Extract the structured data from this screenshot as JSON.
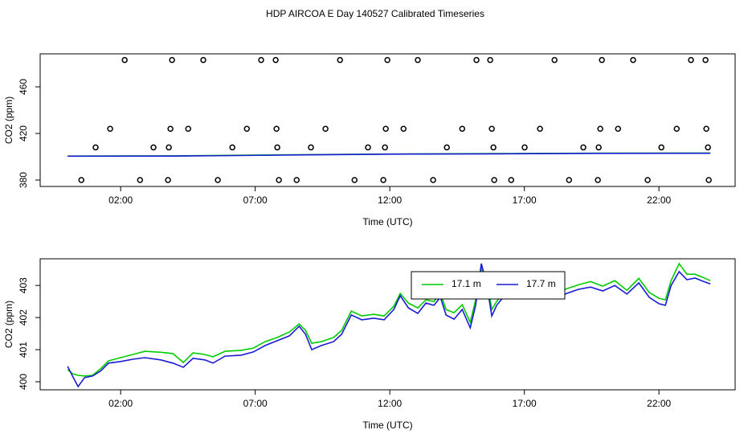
{
  "chart_data": [
    {
      "type": "scatter",
      "title": "HDP AIRCOA E  Day 140527  Calibrated Timeseries",
      "xlabel": "Time (UTC)",
      "ylabel": "CO2 (ppm)",
      "xlim": [
        -0.99,
        24.83
      ],
      "ylim": [
        374.5,
        488.3
      ],
      "xticks": [
        {
          "value": 2,
          "label": "02:00"
        },
        {
          "value": 7,
          "label": "07:00"
        },
        {
          "value": 12,
          "label": "12:00"
        },
        {
          "value": 17,
          "label": "17:00"
        },
        {
          "value": 22,
          "label": "22:00"
        }
      ],
      "yticks": [
        380,
        420,
        460
      ],
      "color": "#000000",
      "x": [
        2.15,
        3.91,
        5.07,
        7.22,
        7.76,
        10.15,
        11.91,
        13.04,
        15.22,
        15.73,
        18.12,
        19.88,
        21.04,
        23.19,
        23.73,
        1.61,
        3.85,
        4.51,
        6.69,
        7.79,
        9.61,
        11.85,
        12.51,
        14.69,
        15.79,
        17.58,
        19.82,
        20.48,
        22.66,
        23.76,
        1.07,
        3.22,
        3.79,
        6.15,
        7.82,
        9.07,
        11.19,
        11.82,
        14.12,
        15.85,
        17.01,
        19.19,
        19.76,
        22.09,
        23.82,
        0.54,
        2.72,
        3.76,
        5.61,
        7.88,
        8.54,
        10.69,
        11.76,
        13.61,
        15.88,
        16.51,
        18.66,
        19.73,
        21.58,
        23.85
      ],
      "values": [
        483,
        483,
        483,
        483,
        483,
        483,
        483,
        483,
        483,
        483,
        483,
        483,
        483,
        483,
        483,
        424,
        424,
        424,
        424,
        424,
        424,
        424,
        424,
        424,
        424,
        424,
        424,
        424,
        424,
        424,
        408,
        408,
        408,
        408,
        408,
        408,
        408,
        408,
        408,
        408,
        408,
        408,
        408,
        408,
        408,
        380,
        380,
        380,
        380,
        380,
        380,
        380,
        380,
        380,
        380,
        380,
        380,
        380,
        380,
        380
      ],
      "series": [
        {
          "color": "#00cc00",
          "x": [
            0.03,
            4,
            8,
            12,
            16,
            20,
            23.91
          ],
          "values": [
            400.6,
            400.8,
            401.6,
            402.3,
            402.7,
            403.1,
            403.2
          ]
        },
        {
          "color": "#1a1ad6",
          "x": [
            0.03,
            4,
            8,
            12,
            16,
            20,
            23.91
          ],
          "values": [
            400.5,
            400.6,
            401.4,
            402.2,
            402.5,
            402.9,
            403.0
          ]
        }
      ]
    },
    {
      "type": "line",
      "xlabel": "Time (UTC)",
      "ylabel": "CO2 (ppm)",
      "xlim": [
        -0.99,
        24.83
      ],
      "ylim": [
        399.75,
        403.83
      ],
      "xticks": [
        {
          "value": 2,
          "label": "02:00"
        },
        {
          "value": 7,
          "label": "07:00"
        },
        {
          "value": 12,
          "label": "12:00"
        },
        {
          "value": 17,
          "label": "17:00"
        },
        {
          "value": 22,
          "label": "22:00"
        }
      ],
      "yticks": [
        400,
        401,
        402,
        403
      ],
      "legend": "top",
      "x": [
        0.03,
        0.21,
        0.42,
        0.66,
        0.96,
        1.25,
        1.55,
        2.0,
        2.45,
        2.9,
        3.49,
        3.94,
        4.33,
        4.69,
        5.13,
        5.43,
        5.88,
        6.48,
        6.93,
        7.37,
        7.82,
        8.27,
        8.63,
        8.87,
        9.1,
        9.46,
        9.91,
        10.21,
        10.57,
        10.96,
        11.4,
        11.79,
        12.15,
        12.39,
        12.69,
        13.04,
        13.34,
        13.64,
        13.88,
        14.09,
        14.39,
        14.69,
        14.99,
        15.19,
        15.4,
        15.61,
        15.79,
        15.97,
        16.33,
        16.78,
        17.22,
        17.67,
        18.12,
        18.57,
        19.01,
        19.46,
        19.91,
        20.36,
        20.81,
        21.25,
        21.64,
        22.0,
        22.24,
        22.45,
        22.75,
        23.04,
        23.34,
        23.64,
        23.91
      ],
      "series": [
        {
          "name": "17.1 m",
          "color": "#00cc00",
          "values": [
            400.38,
            400.25,
            400.2,
            400.18,
            400.2,
            400.4,
            400.65,
            400.75,
            400.85,
            400.95,
            400.92,
            400.88,
            400.6,
            400.9,
            400.85,
            400.78,
            400.95,
            400.98,
            401.05,
            401.25,
            401.38,
            401.55,
            401.8,
            401.6,
            401.2,
            401.25,
            401.38,
            401.6,
            402.2,
            402.05,
            402.1,
            402.05,
            402.35,
            402.75,
            402.45,
            402.3,
            402.55,
            402.5,
            402.75,
            402.25,
            402.15,
            402.4,
            401.85,
            402.55,
            403.55,
            403.15,
            402.25,
            402.5,
            402.85,
            402.75,
            402.75,
            402.8,
            402.7,
            402.9,
            403.02,
            403.12,
            402.98,
            403.15,
            402.85,
            403.22,
            402.78,
            402.6,
            402.55,
            403.15,
            403.68,
            403.35,
            403.35,
            403.25,
            403.15
          ]
        },
        {
          "name": "17.7 m",
          "color": "#1a1ad6",
          "values": [
            400.48,
            400.18,
            399.85,
            400.13,
            400.18,
            400.33,
            400.58,
            400.63,
            400.7,
            400.75,
            400.68,
            400.58,
            400.45,
            400.73,
            400.68,
            400.58,
            400.8,
            400.83,
            400.93,
            401.13,
            401.28,
            401.43,
            401.73,
            401.48,
            401.0,
            401.13,
            401.25,
            401.48,
            402.08,
            401.93,
            401.98,
            401.93,
            402.25,
            402.68,
            402.3,
            402.13,
            402.45,
            402.38,
            402.63,
            402.08,
            401.95,
            402.25,
            401.68,
            402.38,
            403.68,
            403.0,
            402.05,
            402.38,
            402.75,
            402.68,
            402.63,
            402.7,
            402.58,
            402.75,
            402.88,
            402.95,
            402.83,
            403.0,
            402.73,
            403.08,
            402.63,
            402.43,
            402.38,
            403.0,
            403.43,
            403.18,
            403.23,
            403.13,
            403.05
          ]
        }
      ]
    }
  ]
}
